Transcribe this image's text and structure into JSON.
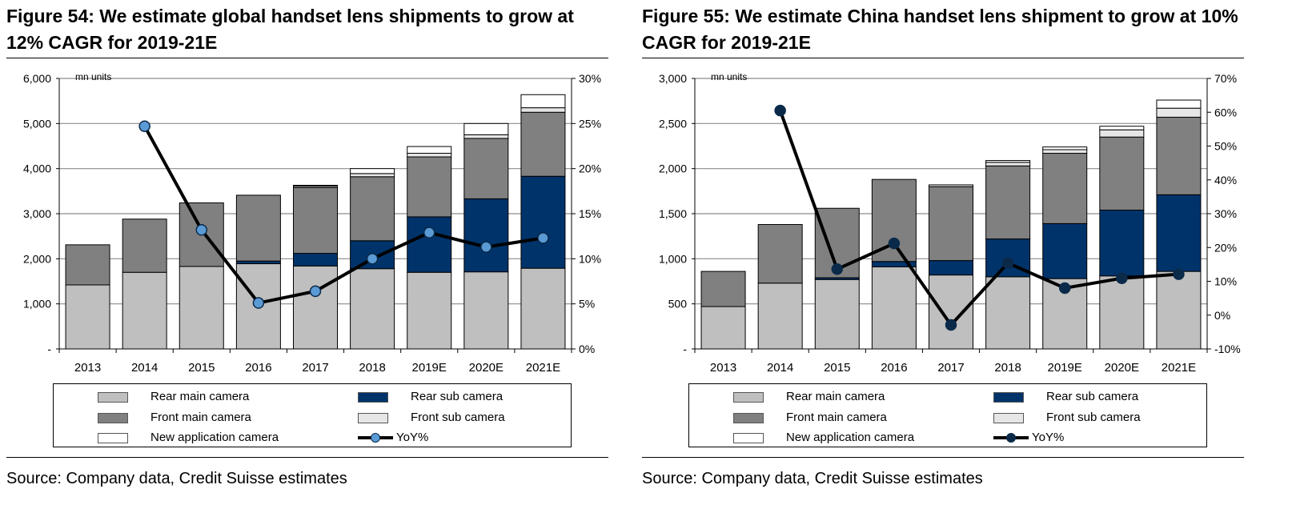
{
  "colors": {
    "rear_main": "#bfbfbf",
    "rear_sub": "#00336a",
    "front_main": "#808080",
    "front_sub": "#e6e6e6",
    "new_app": "#ffffff",
    "yoy_line": "#000000",
    "yoy_marker": "#5b9bd5"
  },
  "panels": [
    {
      "title": "Figure 54: We estimate global handset lens shipments to grow at 12% CAGR for 2019-21E",
      "unit_label": "mn units",
      "source": "Source: Company data, Credit Suisse estimates",
      "legend": {
        "rear_main": "Rear main camera",
        "rear_sub": "Rear sub camera",
        "front_main": "Front main camera",
        "front_sub": "Front sub camera",
        "new_app": "New application camera",
        "yoy": "YoY%"
      },
      "chart_data": {
        "type": "bar",
        "stacked": true,
        "categories": [
          "2013",
          "2014",
          "2015",
          "2016",
          "2017",
          "2018",
          "2019E",
          "2020E",
          "2021E"
        ],
        "ylim": [
          0,
          6000
        ],
        "yticks": [
          0,
          1000,
          2000,
          3000,
          4000,
          5000,
          6000
        ],
        "ytick_labels": [
          "-",
          "1,000",
          "2,000",
          "3,000",
          "4,000",
          "5,000",
          "6,000"
        ],
        "y2lim": [
          0,
          30
        ],
        "y2ticks": [
          0,
          5,
          10,
          15,
          20,
          25,
          30
        ],
        "y2tick_labels": [
          "0%",
          "5%",
          "10%",
          "15%",
          "20%",
          "25%",
          "30%"
        ],
        "grid": true,
        "series": [
          {
            "name": "Rear main camera",
            "values": [
              1420,
              1700,
              1830,
              1890,
              1840,
              1780,
              1700,
              1710,
              1790
            ]
          },
          {
            "name": "Rear sub camera",
            "values": [
              0,
              0,
              0,
              60,
              280,
              620,
              1230,
              1620,
              2040
            ]
          },
          {
            "name": "Front main camera",
            "values": [
              890,
              1180,
              1410,
              1460,
              1460,
              1420,
              1330,
              1340,
              1420
            ]
          },
          {
            "name": "Front sub camera",
            "values": [
              0,
              0,
              0,
              0,
              30,
              70,
              80,
              80,
              100
            ]
          },
          {
            "name": "New application camera",
            "values": [
              0,
              0,
              0,
              0,
              20,
              110,
              150,
              250,
              290
            ]
          }
        ],
        "line_series": [
          {
            "name": "YoY%",
            "axis": "right",
            "values": [
              null,
              24.7,
              13.2,
              5.1,
              6.4,
              10.0,
              12.9,
              11.3,
              12.3
            ]
          }
        ]
      }
    },
    {
      "title": "Figure 55: We estimate China handset lens shipment to grow at 10% CAGR for 2019-21E",
      "unit_label": "mn units",
      "source": "Source: Company data, Credit Suisse estimates",
      "legend": {
        "rear_main": "Rear main camera",
        "rear_sub": "Rear sub camera",
        "front_main": "Front main camera",
        "front_sub": "Front sub camera",
        "new_app": "New application camera",
        "yoy": "YoY%"
      },
      "chart_data": {
        "type": "bar",
        "stacked": true,
        "categories": [
          "2013",
          "2014",
          "2015",
          "2016",
          "2017",
          "2018",
          "2019E",
          "2020E",
          "2021E"
        ],
        "ylim": [
          0,
          3000
        ],
        "yticks": [
          0,
          500,
          1000,
          1500,
          2000,
          2500,
          3000
        ],
        "ytick_labels": [
          "-",
          "500",
          "1,000",
          "1,500",
          "2,000",
          "2,500",
          "3,000"
        ],
        "y2lim": [
          -10,
          70
        ],
        "y2ticks": [
          -10,
          0,
          10,
          20,
          30,
          40,
          50,
          60,
          70
        ],
        "y2tick_labels": [
          "-10%",
          "0%",
          "10%",
          "20%",
          "30%",
          "40%",
          "50%",
          "60%",
          "70%"
        ],
        "grid": true,
        "series": [
          {
            "name": "Rear main camera",
            "values": [
              470,
              730,
              770,
              910,
              820,
              800,
              780,
              810,
              860
            ]
          },
          {
            "name": "Rear sub camera",
            "values": [
              0,
              0,
              20,
              60,
              160,
              420,
              610,
              730,
              850
            ]
          },
          {
            "name": "Front main camera",
            "values": [
              390,
              650,
              770,
              910,
              820,
              810,
              780,
              810,
              860
            ]
          },
          {
            "name": "Front sub camera",
            "values": [
              0,
              0,
              0,
              0,
              20,
              40,
              40,
              80,
              100
            ]
          },
          {
            "name": "New application camera",
            "values": [
              0,
              0,
              0,
              0,
              0,
              20,
              30,
              40,
              90
            ]
          }
        ],
        "line_series": [
          {
            "name": "YoY%",
            "axis": "right",
            "values": [
              null,
              60.5,
              13.6,
              21.2,
              -2.9,
              15.4,
              8.0,
              10.9,
              12.1
            ]
          }
        ]
      }
    }
  ]
}
